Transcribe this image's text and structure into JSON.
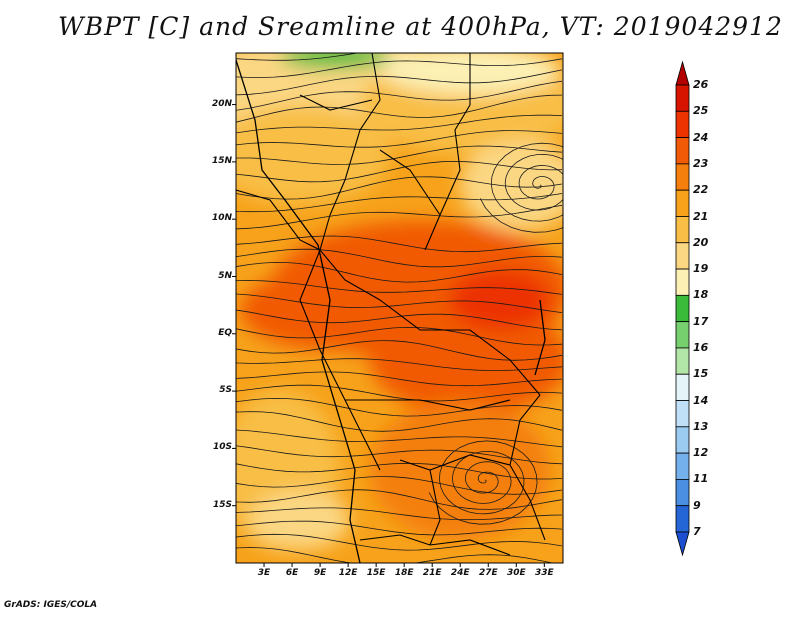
{
  "title": "WBPT [C] and Sreamline at 400hPa, VT: 2019042912",
  "footer": "GrADS: IGES/COLA",
  "map": {
    "lat_labels": [
      "20N",
      "15N",
      "10N",
      "5N",
      "EQ",
      "5S",
      "10S",
      "15S"
    ],
    "lat_values": [
      20,
      15,
      10,
      5,
      0,
      -5,
      -10,
      -15
    ],
    "lon_labels": [
      "3E",
      "6E",
      "9E",
      "12E",
      "15E",
      "18E",
      "21E",
      "24E",
      "27E",
      "30E",
      "33E"
    ],
    "lon_values": [
      3,
      6,
      9,
      12,
      15,
      18,
      21,
      24,
      27,
      30,
      33
    ],
    "lon_range": [
      0,
      35
    ],
    "lat_range": [
      -20,
      24.5
    ]
  },
  "colorbar": {
    "labels": [
      "26",
      "25",
      "24",
      "23",
      "22",
      "21",
      "20",
      "19",
      "18",
      "17",
      "16",
      "15",
      "14",
      "13",
      "12",
      "11",
      "9",
      "7"
    ],
    "colors": [
      "#b50000",
      "#d71400",
      "#ec3300",
      "#f15a06",
      "#f47f0d",
      "#f7a21a",
      "#f8be45",
      "#fbd783",
      "#fcf0b4",
      "#3abb3a",
      "#77d06e",
      "#b2e6a8",
      "#e4f4f9",
      "#bfe0f6",
      "#9ccbf2",
      "#74b0ec",
      "#4a8fe1",
      "#2566d7",
      "#1c4fd0"
    ]
  }
}
